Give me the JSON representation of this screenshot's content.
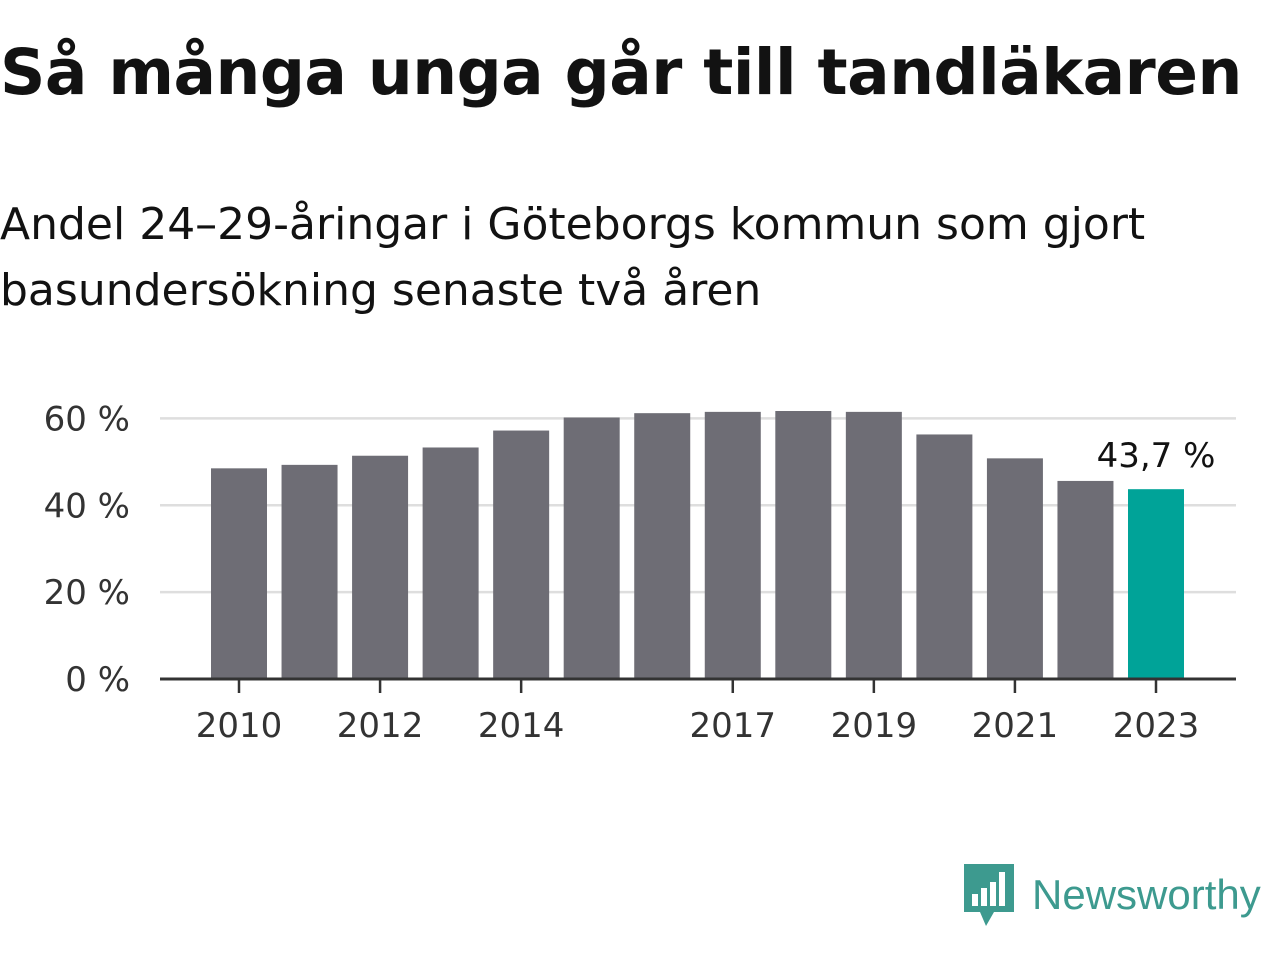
{
  "title": "Så många unga går till tandläkaren",
  "subtitle": "Andel 24–29-åringar i Göteborgs kommun som gjort basundersökning senaste två åren",
  "colors": {
    "bar": "#6e6d75",
    "highlight": "#00a398",
    "grid": "#dedede",
    "axis": "#333333",
    "brand": "#3d9a8f"
  },
  "logo": {
    "icon": "newsworthy-bar-chart-icon",
    "text": "Newsworthy"
  },
  "chart_data": {
    "type": "bar",
    "categories": [
      "2010",
      "2011",
      "2012",
      "2013",
      "2014",
      "2015",
      "2016",
      "2017",
      "2018",
      "2019",
      "2020",
      "2021",
      "2022",
      "2023"
    ],
    "x_tick_labels": [
      "2010",
      "",
      "2012",
      "",
      "2014",
      "",
      "",
      "2017",
      "",
      "2019",
      "",
      "2021",
      "",
      "2023"
    ],
    "values": [
      48.5,
      49.3,
      51.4,
      53.3,
      57.2,
      60.2,
      61.2,
      61.5,
      61.7,
      61.5,
      56.3,
      50.8,
      45.6,
      43.7
    ],
    "highlight_index": 13,
    "data_labels": [
      {
        "index": 13,
        "text": "43,7 %"
      }
    ],
    "y_ticks": [
      0,
      20,
      40,
      60
    ],
    "y_tick_labels": [
      "0 %",
      "20 %",
      "40 %",
      "60 %"
    ],
    "ylim": [
      0,
      61.7
    ],
    "grid": true,
    "legend": "none",
    "xlabel": "",
    "ylabel": ""
  }
}
